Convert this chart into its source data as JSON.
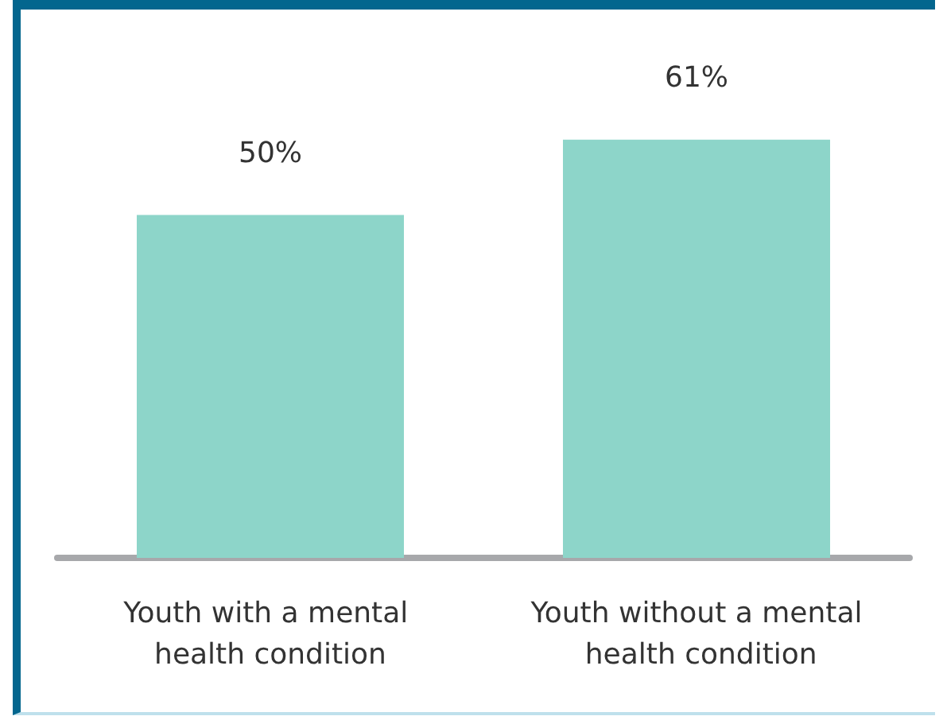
{
  "chart_data": {
    "type": "bar",
    "categories": [
      "Youth with a mental health condition",
      "Youth without a mental health condition"
    ],
    "values": [
      50,
      61
    ],
    "value_labels": [
      "50%",
      "61%"
    ],
    "color": "#8dd5c9",
    "grid": false,
    "tick_labels": "x"
  }
}
